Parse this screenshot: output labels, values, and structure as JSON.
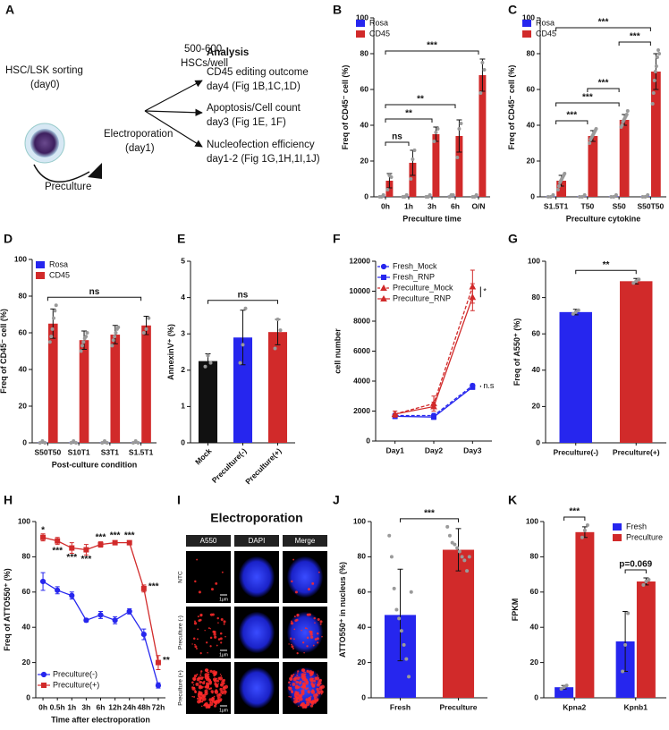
{
  "diagram": {
    "panel": "A",
    "sorting": "HSC/LSK sorting",
    "day0": "(day0)",
    "electroporation": "Electroporation",
    "day1": "(day1)",
    "preculture": "Preculture",
    "cells": "500-600",
    "per_well": "HSCs/well",
    "analysis": "Analysis",
    "items": [
      {
        "title": "CD45 editing outcome",
        "detail": "day4 (Fig 1B,1C,1D)"
      },
      {
        "title": "Apoptosis/Cell count",
        "detail": "day3 (Fig 1E, 1F)"
      },
      {
        "title": "Nucleofection efficiency",
        "detail": "day1-2 (Fig 1G,1H,1I,1J)"
      }
    ]
  },
  "microscopy": {
    "panel": "I",
    "title": "Electroporation",
    "columns": [
      "A550",
      "DAPI",
      "Merge"
    ],
    "rows": [
      "NTC",
      "Preculture (-)",
      "Preculture (+)"
    ],
    "scale_bar": "1μm"
  },
  "chart_data": [
    {
      "type": "bar",
      "panel": "B",
      "ylabel": "Freq of CD45⁻ cell (%)",
      "xlabel": "Preculture time",
      "categories": [
        "0h",
        "1h",
        "3h",
        "6h",
        "O/N"
      ],
      "series": [
        {
          "name": "Rosa",
          "color": "#2626ee",
          "values": [
            0.3,
            0.3,
            0.3,
            0.7,
            0.3
          ],
          "points": [
            [
              0,
              0,
              1
            ],
            [
              0,
              0,
              1
            ],
            [
              0,
              0,
              1
            ],
            [
              0,
              1,
              1
            ],
            [
              0,
              0,
              1
            ]
          ]
        },
        {
          "name": "CD45",
          "color": "#d12a2a",
          "values": [
            9,
            19,
            35,
            34,
            68
          ],
          "errors": [
            4,
            7,
            4,
            9,
            9
          ],
          "points": [
            [
              4,
              12,
              11
            ],
            [
              10,
              21,
              26
            ],
            [
              31,
              36,
              38
            ],
            [
              22,
              38,
              41
            ],
            [
              58,
              75,
              71
            ]
          ]
        }
      ],
      "ylim": [
        0,
        100
      ],
      "yticks": [
        0,
        20,
        40,
        60,
        80,
        100
      ],
      "legend": "top-left",
      "brackets": [
        {
          "between": [
            "0h",
            "1h"
          ],
          "label": "ns"
        },
        {
          "between": [
            "0h",
            "3h"
          ],
          "label": "**"
        },
        {
          "between": [
            "0h",
            "6h"
          ],
          "label": "**"
        },
        {
          "between": [
            "0h",
            "O/N"
          ],
          "label": "***"
        }
      ]
    },
    {
      "type": "bar",
      "panel": "C",
      "ylabel": "Freq of CD45⁻ cell (%)",
      "xlabel": "Preculture cytokine",
      "categories": [
        "S1.5T1",
        "T50",
        "S50",
        "S50T50"
      ],
      "series": [
        {
          "name": "Rosa",
          "color": "#2626ee",
          "values": [
            0.3,
            0.3,
            0.3,
            0.3
          ],
          "points": [
            [
              0,
              0,
              1
            ],
            [
              0,
              0,
              1
            ],
            [
              0,
              0,
              1
            ],
            [
              0,
              0,
              1
            ]
          ]
        },
        {
          "name": "CD45",
          "color": "#d12a2a",
          "values": [
            9,
            34,
            43,
            70
          ],
          "errors": [
            3,
            3,
            3,
            10
          ],
          "points": [
            [
              4,
              6,
              8,
              9,
              10,
              11,
              12,
              13
            ],
            [
              30,
              32,
              33,
              34,
              35,
              36,
              37,
              38
            ],
            [
              39,
              40,
              42,
              43,
              44,
              45,
              46,
              48
            ],
            [
              52,
              58,
              65,
              70,
              73,
              78,
              82,
              80
            ]
          ]
        }
      ],
      "ylim": [
        0,
        100
      ],
      "yticks": [
        0,
        20,
        40,
        60,
        80,
        100
      ],
      "legend": "top-left",
      "brackets": [
        {
          "between": [
            "S1.5T1",
            "T50"
          ],
          "label": "***"
        },
        {
          "between": [
            "S1.5T1",
            "S50"
          ],
          "label": "***"
        },
        {
          "between": [
            "T50",
            "S50"
          ],
          "label": "***"
        },
        {
          "between": [
            "S50",
            "S50T50"
          ],
          "label": "***"
        },
        {
          "between": [
            "S1.5T1",
            "S50T50"
          ],
          "label": "***"
        }
      ]
    },
    {
      "type": "bar",
      "panel": "D",
      "ylabel": "Freq of CD45⁻ cell (%)",
      "xlabel": "Post-culture condition",
      "categories": [
        "S50T50",
        "S10T1",
        "S3T1",
        "S1.5T1"
      ],
      "series": [
        {
          "name": "Rosa",
          "color": "#2626ee",
          "values": [
            0.3,
            0.3,
            0.3,
            0.3
          ],
          "points": [
            [
              0,
              1,
              0
            ],
            [
              0,
              1,
              0
            ],
            [
              0,
              1,
              0
            ],
            [
              0,
              1,
              0
            ]
          ]
        },
        {
          "name": "CD45",
          "color": "#d12a2a",
          "values": [
            65,
            56,
            59,
            64
          ],
          "errors": [
            8,
            5,
            5,
            5
          ],
          "points": [
            [
              55,
              58,
              62,
              68,
              72,
              75
            ],
            [
              50,
              53,
              55,
              57,
              58,
              60
            ],
            [
              53,
              56,
              58,
              60,
              62,
              63
            ],
            [
              60,
              62,
              68
            ]
          ]
        }
      ],
      "ylim": [
        0,
        100
      ],
      "yticks": [
        0,
        20,
        40,
        60,
        80,
        100
      ],
      "legend": "top-left",
      "brackets": [
        {
          "between": [
            "S50T50",
            "S1.5T1"
          ],
          "label": "ns"
        }
      ]
    },
    {
      "type": "bar",
      "panel": "E",
      "ylabel": "AnnexinV⁺ (%)",
      "categories": [
        "Mock",
        "Preculture(-)",
        "Preculture(+)"
      ],
      "xtick_rotation": 45,
      "series": [
        {
          "colors": [
            "#111111",
            "#2626ee",
            "#d12a2a"
          ],
          "values": [
            2.25,
            2.9,
            3.05
          ],
          "errors": [
            0.2,
            0.75,
            0.35
          ],
          "points": [
            [
              2.1,
              2.4,
              2.2
            ],
            [
              2.2,
              2.7,
              3.7
            ],
            [
              2.6,
              3.4,
              3.1
            ]
          ]
        }
      ],
      "ylim": [
        0,
        5
      ],
      "yticks": [
        0,
        1,
        2,
        3,
        4,
        5
      ],
      "brackets": [
        {
          "between": [
            "Mock",
            "Preculture(+)"
          ],
          "label": "ns"
        }
      ]
    },
    {
      "type": "line",
      "panel": "F",
      "ylabel": "cell number",
      "categories": [
        "Day1",
        "Day2",
        "Day3"
      ],
      "series": [
        {
          "name": "Fresh_Mock",
          "color": "#2626ee",
          "marker": "circle",
          "dash": true,
          "values": [
            1700,
            1700,
            3700
          ],
          "errors": [
            150,
            150,
            120
          ]
        },
        {
          "name": "Fresh_RNP",
          "color": "#2626ee",
          "marker": "square",
          "dash": false,
          "values": [
            1650,
            1600,
            3600
          ],
          "errors": [
            150,
            150,
            150
          ]
        },
        {
          "name": "Preculture_Mock",
          "color": "#d12a2a",
          "marker": "triangle",
          "dash": true,
          "values": [
            1800,
            2500,
            10300
          ],
          "errors": [
            200,
            500,
            1100
          ]
        },
        {
          "name": "Preculture_RNP",
          "color": "#d12a2a",
          "marker": "triangle",
          "dash": false,
          "values": [
            1800,
            2300,
            9600
          ],
          "errors": [
            200,
            300,
            900
          ]
        }
      ],
      "ylim": [
        0,
        12000
      ],
      "yticks": [
        0,
        2000,
        4000,
        6000,
        8000,
        10000,
        12000
      ],
      "legend": "top-left",
      "annotations": [
        {
          "text": "*",
          "between": [
            "Preculture_Mock",
            "Preculture_RNP"
          ]
        },
        {
          "text": "n.s",
          "between": [
            "Fresh_Mock",
            "Fresh_RNP"
          ]
        }
      ]
    },
    {
      "type": "bar",
      "panel": "G",
      "ylabel": "Freq of A550⁺ (%)",
      "categories": [
        "Preculture(-)",
        "Preculture(+)"
      ],
      "series": [
        {
          "colors": [
            "#2626ee",
            "#d12a2a"
          ],
          "values": [
            72,
            89
          ],
          "errors": [
            1.5,
            1.5
          ],
          "points": [
            [
              71,
              72,
              73
            ],
            [
              88,
              89,
              90
            ]
          ]
        }
      ],
      "ylim": [
        0,
        100
      ],
      "yticks": [
        0,
        20,
        40,
        60,
        80,
        100
      ],
      "brackets": [
        {
          "between": [
            "Preculture(-)",
            "Preculture(+)"
          ],
          "label": "**"
        }
      ]
    },
    {
      "type": "line",
      "panel": "H",
      "ylabel": "Freq of ATTO550⁺ (%)",
      "xlabel": "Time after electroporation",
      "categories": [
        "0h",
        "0.5h",
        "1h",
        "3h",
        "6h",
        "12h",
        "24h",
        "48h",
        "72h"
      ],
      "series": [
        {
          "name": "Preculture(-)",
          "color": "#2626ee",
          "marker": "circle",
          "dash": false,
          "values": [
            66,
            61,
            58,
            44,
            47,
            44,
            49,
            36,
            7
          ],
          "errors": [
            5,
            2,
            2,
            1,
            2,
            2,
            1.5,
            3,
            1.5
          ]
        },
        {
          "name": "Preculture(+)",
          "color": "#d12a2a",
          "marker": "square",
          "dash": false,
          "values": [
            91,
            89,
            85,
            84,
            87,
            88,
            88,
            62,
            20
          ],
          "errors": [
            2,
            2,
            3,
            3,
            1.5,
            1,
            1,
            2,
            4
          ]
        }
      ],
      "ylim": [
        0,
        100
      ],
      "yticks": [
        0,
        20,
        40,
        60,
        80,
        100
      ],
      "legend": "bottom-left",
      "point_labels": [
        "*",
        "***",
        "***",
        "***",
        "***",
        "***",
        "***",
        "***",
        "**"
      ]
    },
    {
      "type": "bar",
      "panel": "J",
      "ylabel": "ATTO550⁺ in nucleus (%)",
      "categories": [
        "Fresh",
        "Preculture"
      ],
      "series": [
        {
          "colors": [
            "#2626ee",
            "#d12a2a"
          ],
          "values": [
            47,
            84
          ],
          "errors": [
            26,
            12
          ],
          "points": [
            [
              92,
              80,
              62,
              50,
              45,
              38,
              30,
              22,
              12,
              60
            ],
            [
              97,
              92,
              88,
              87,
              85,
              83,
              80,
              78,
              72,
              80
            ]
          ]
        }
      ],
      "ylim": [
        0,
        100
      ],
      "yticks": [
        0,
        20,
        40,
        60,
        80,
        100
      ],
      "brackets": [
        {
          "between": [
            "Fresh",
            "Preculture"
          ],
          "label": "***"
        }
      ]
    },
    {
      "type": "bar",
      "panel": "K",
      "ylabel": "FPKM",
      "categories": [
        "Kpna2",
        "Kpnb1"
      ],
      "series": [
        {
          "name": "Fresh",
          "color": "#2626ee",
          "values": [
            6,
            32
          ],
          "errors": [
            1,
            17
          ],
          "points": [
            [
              5,
              6,
              7
            ],
            [
              15,
              30,
              48
            ]
          ]
        },
        {
          "name": "Preculture",
          "color": "#d12a2a",
          "values": [
            94,
            66
          ],
          "errors": [
            3,
            2
          ],
          "points": [
            [
              91,
              95,
              98
            ],
            [
              64,
              66,
              67
            ]
          ]
        }
      ],
      "ylim": [
        0,
        100
      ],
      "yticks": [
        0,
        20,
        40,
        60,
        80,
        100
      ],
      "legend": "top-right",
      "brackets": [
        {
          "category": "Kpna2",
          "label": "***"
        },
        {
          "category": "Kpnb1",
          "label": "p=0.069"
        }
      ]
    }
  ]
}
